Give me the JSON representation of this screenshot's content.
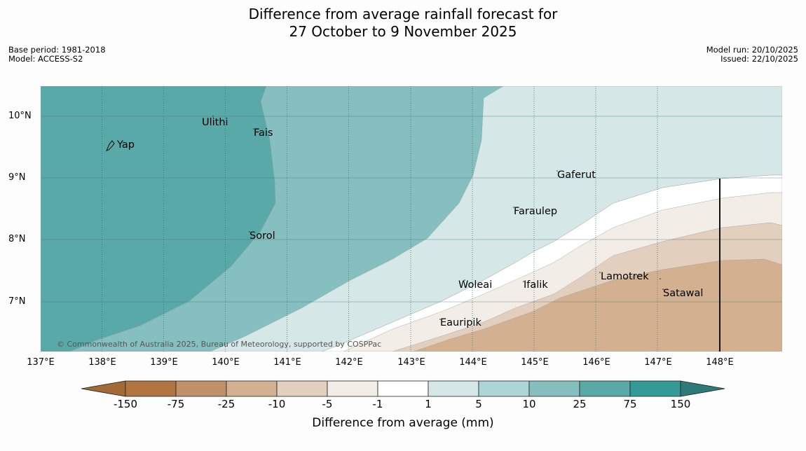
{
  "title": {
    "line1": "Difference from average rainfall forecast for",
    "line2": "27 October to 9 November 2025"
  },
  "meta_left": {
    "base_period": "Base period: 1981-2018",
    "model": "Model: ACCESS-S2"
  },
  "meta_right": {
    "model_run": "Model run: 20/10/2025",
    "issued": "Issued: 22/10/2025"
  },
  "map": {
    "lat_labels": [
      "10°N",
      "9°N",
      "8°N",
      "7°N"
    ],
    "lon_labels": [
      "137°E",
      "138°E",
      "139°E",
      "140°E",
      "141°E",
      "142°E",
      "143°E",
      "144°E",
      "145°E",
      "146°E",
      "147°E",
      "148°E"
    ],
    "places": {
      "yap": "Yap",
      "ulithi": "Ulithi",
      "fais": "Fais",
      "gaferut": "Gaferut",
      "faraulep": "Faraulep",
      "sorol": "Sorol",
      "woleai": "Woleai",
      "ifalik": "Ifalik",
      "lamotrek": "Lamotrek",
      "satawal": "Satawal",
      "eauripik": "Eauripik"
    },
    "copyright": "© Commonwealth of Australia 2025, Bureau of Meteorology, supported by COSPPac"
  },
  "colorbar": {
    "labels": [
      "-150",
      "-75",
      "-25",
      "-10",
      "-5",
      "-1",
      "1",
      "5",
      "10",
      "25",
      "75",
      "150"
    ],
    "colors": [
      "#a36a35",
      "#b07540",
      "#c09067",
      "#d3b090",
      "#e3cfbd",
      "#f2ede7",
      "#ffffff",
      "#d5e8e7",
      "#acd5d5",
      "#85bfbf",
      "#5aa9a9",
      "#349a98",
      "#2e7a7a"
    ],
    "title": "Difference from average (mm)"
  }
}
